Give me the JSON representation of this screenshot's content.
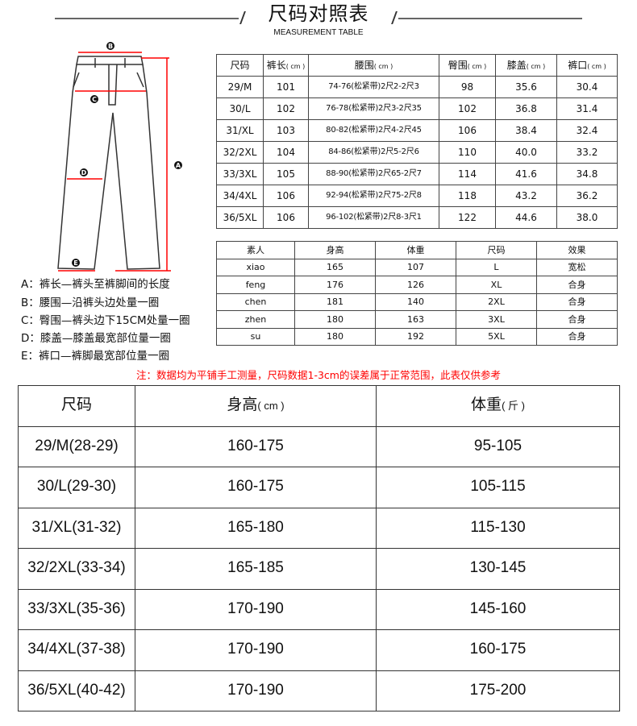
{
  "header": {
    "title": "尺码对照表",
    "subtitle": "MEASUREMENT TABLE"
  },
  "diagram": {
    "markers": [
      "A",
      "B",
      "C",
      "D",
      "E"
    ],
    "line_color": "#ff0000"
  },
  "legend": [
    "A：裤长—裤头至裤脚间的长度",
    "B：腰围—沿裤头边处量一圈",
    "C：臀围—裤头边下15CM处量一圈",
    "D：膝盖—膝盖最宽部位量一圈",
    "E：裤口—裤脚最宽部位量一圈"
  ],
  "size_table": {
    "headers": [
      {
        "label": "尺码",
        "unit": ""
      },
      {
        "label": "裤长",
        "unit": "( cm )"
      },
      {
        "label": "腰围",
        "unit": "( cm )"
      },
      {
        "label": "臀围",
        "unit": "( cm )"
      },
      {
        "label": "膝盖",
        "unit": "( cm )"
      },
      {
        "label": "裤口",
        "unit": "( cm )"
      }
    ],
    "rows": [
      [
        "29/M",
        "101",
        "74-76(松紧带)2尺2-2尺3",
        "98",
        "35.6",
        "30.4"
      ],
      [
        "30/L",
        "102",
        "76-78(松紧带)2尺3-2尺35",
        "102",
        "36.8",
        "31.4"
      ],
      [
        "31/XL",
        "103",
        "80-82(松紧带)2尺4-2尺45",
        "106",
        "38.4",
        "32.4"
      ],
      [
        "32/2XL",
        "104",
        "84-86(松紧带)2尺5-2尺6",
        "110",
        "40.0",
        "33.2"
      ],
      [
        "33/3XL",
        "105",
        "88-90(松紧带)2尺65-2尺7",
        "114",
        "41.6",
        "34.8"
      ],
      [
        "34/4XL",
        "106",
        "92-94(松紧带)2尺75-2尺8",
        "118",
        "43.2",
        "36.2"
      ],
      [
        "36/5XL",
        "106",
        "96-102(松紧带)2尺8-3尺1",
        "122",
        "44.6",
        "38.0"
      ]
    ]
  },
  "model_table": {
    "headers": [
      {
        "label": "素人",
        "unit": ""
      },
      {
        "label": "身高",
        "unit": ""
      },
      {
        "label": "体重",
        "unit": ""
      },
      {
        "label": "尺码",
        "unit": ""
      },
      {
        "label": "效果",
        "unit": ""
      }
    ],
    "rows": [
      [
        "xiao",
        "165",
        "107",
        "L",
        "宽松"
      ],
      [
        "feng",
        "176",
        "126",
        "XL",
        "合身"
      ],
      [
        "chen",
        "181",
        "140",
        "2XL",
        "合身"
      ],
      [
        "zhen",
        "180",
        "163",
        "3XL",
        "合身"
      ],
      [
        "su",
        "180",
        "192",
        "5XL",
        "合身"
      ]
    ]
  },
  "note": {
    "text": "注：数据均为平铺手工测量，尺码数据1-3cm的误差属于正常范围，此表仅供参考",
    "color": "#ff0000"
  },
  "recommend_table": {
    "headers": [
      {
        "label": "尺码",
        "unit": ""
      },
      {
        "label": "身高",
        "unit": "( cm )"
      },
      {
        "label": "体重",
        "unit": "( 斤 )"
      }
    ],
    "rows": [
      [
        "29/M(28-29)",
        "160-175",
        "95-105"
      ],
      [
        "30/L(29-30)",
        "160-175",
        "105-115"
      ],
      [
        "31/XL(31-32)",
        "165-180",
        "115-130"
      ],
      [
        "32/2XL(33-34)",
        "165-185",
        "130-145"
      ],
      [
        "33/3XL(35-36)",
        "170-190",
        "145-160"
      ],
      [
        "34/4XL(37-38)",
        "170-190",
        "160-175"
      ],
      [
        "36/5XL(40-42)",
        "170-190",
        "175-200"
      ]
    ]
  }
}
